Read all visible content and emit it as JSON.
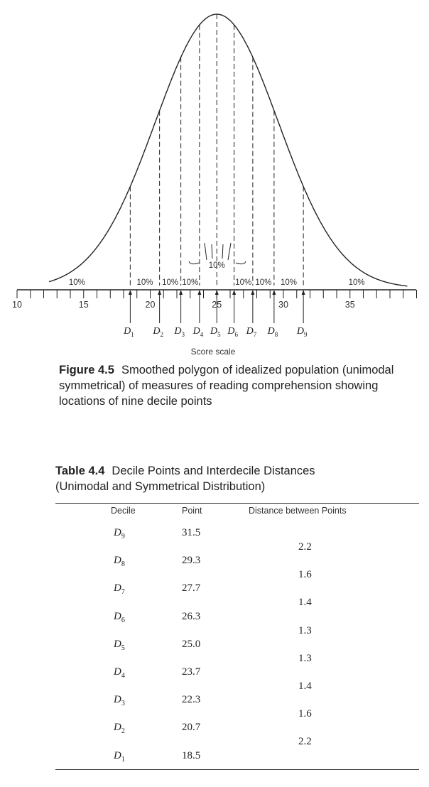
{
  "figure": {
    "axis": {
      "label": "Score scale",
      "tick_labels": [
        "10",
        "15",
        "20",
        "25",
        "30",
        "35"
      ],
      "range": [
        10,
        40
      ]
    },
    "deciles": [
      {
        "name": "D",
        "sub": "1",
        "value": 18.5
      },
      {
        "name": "D",
        "sub": "2",
        "value": 20.7
      },
      {
        "name": "D",
        "sub": "3",
        "value": 22.3
      },
      {
        "name": "D",
        "sub": "4",
        "value": 23.7
      },
      {
        "name": "D",
        "sub": "5",
        "value": 25.0
      },
      {
        "name": "D",
        "sub": "6",
        "value": 26.3
      },
      {
        "name": "D",
        "sub": "7",
        "value": 27.7
      },
      {
        "name": "D",
        "sub": "8",
        "value": 29.3
      },
      {
        "name": "D",
        "sub": "9",
        "value": 31.5
      }
    ],
    "percent_labels": [
      "10%",
      "10%",
      "10%",
      "10%",
      "10%",
      "10%",
      "10%",
      "10%"
    ],
    "caption_number": "Figure 4.5",
    "caption_text": "Smoothed polygon of idealized population (unimodal symmetrical) of measures of reading comprehension showing locations of nine decile points"
  },
  "table": {
    "caption_number": "Table 4.4",
    "caption_line1": "Decile Points and Interdecile Distances",
    "caption_line2": "(Unimodal and Symmetrical Distribution)",
    "headers": [
      "Decile",
      "Point",
      "Distance between Points"
    ],
    "rows": [
      {
        "decile": "D",
        "sub": "9",
        "point": "31.5"
      },
      {
        "decile": "D",
        "sub": "8",
        "point": "29.3"
      },
      {
        "decile": "D",
        "sub": "7",
        "point": "27.7"
      },
      {
        "decile": "D",
        "sub": "6",
        "point": "26.3"
      },
      {
        "decile": "D",
        "sub": "5",
        "point": "25.0"
      },
      {
        "decile": "D",
        "sub": "4",
        "point": "23.7"
      },
      {
        "decile": "D",
        "sub": "3",
        "point": "22.3"
      },
      {
        "decile": "D",
        "sub": "2",
        "point": "20.7"
      },
      {
        "decile": "D",
        "sub": "1",
        "point": "18.5"
      }
    ],
    "distances": [
      "2.2",
      "1.6",
      "1.4",
      "1.3",
      "1.3",
      "1.4",
      "1.6",
      "2.2"
    ]
  }
}
